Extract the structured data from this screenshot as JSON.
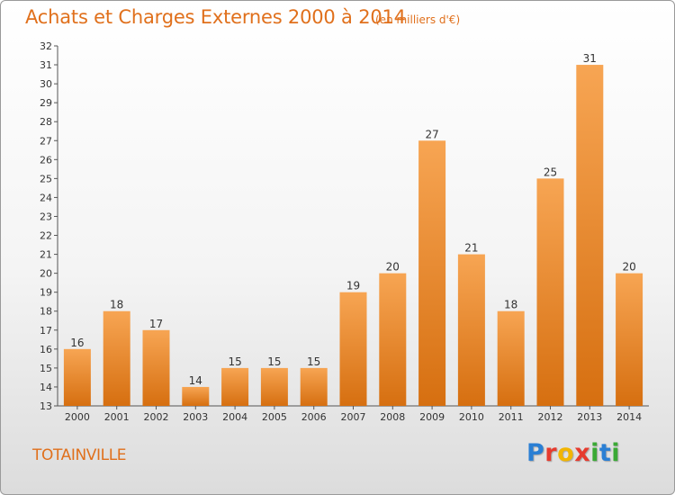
{
  "header": {
    "title": "Achats et Charges Externes 2000 à 2014",
    "subtitle": "(en milliers d'€)"
  },
  "footer": {
    "commune": "TOTAINVILLE",
    "logo_letters": [
      {
        "char": "P",
        "color": "#2a7fd4"
      },
      {
        "char": "r",
        "color": "#e63b2e"
      },
      {
        "char": "o",
        "color": "#f2b500"
      },
      {
        "char": "x",
        "color": "#e63b2e"
      },
      {
        "char": "i",
        "color": "#3aa935"
      },
      {
        "char": "t",
        "color": "#2a7fd4"
      },
      {
        "char": "i",
        "color": "#3aa935"
      }
    ]
  },
  "colors": {
    "bar_light": "#f7a553",
    "bar_dark": "#d66f10",
    "title": "#e0701c"
  },
  "chart_data": {
    "type": "bar",
    "title": "Achats et Charges Externes 2000 à 2014",
    "subtitle": "(en milliers d'€)",
    "categories": [
      "2000",
      "2001",
      "2002",
      "2003",
      "2004",
      "2005",
      "2006",
      "2007",
      "2008",
      "2009",
      "2010",
      "2011",
      "2012",
      "2013",
      "2014"
    ],
    "values": [
      16,
      18,
      17,
      14,
      15,
      15,
      15,
      19,
      20,
      27,
      21,
      18,
      25,
      31,
      20
    ],
    "ylim": [
      13,
      32
    ],
    "yticks": [
      13,
      14,
      15,
      16,
      17,
      18,
      19,
      20,
      21,
      22,
      23,
      24,
      25,
      26,
      27,
      28,
      29,
      30,
      31,
      32
    ],
    "grid": false,
    "xlabel": "",
    "ylabel": ""
  }
}
